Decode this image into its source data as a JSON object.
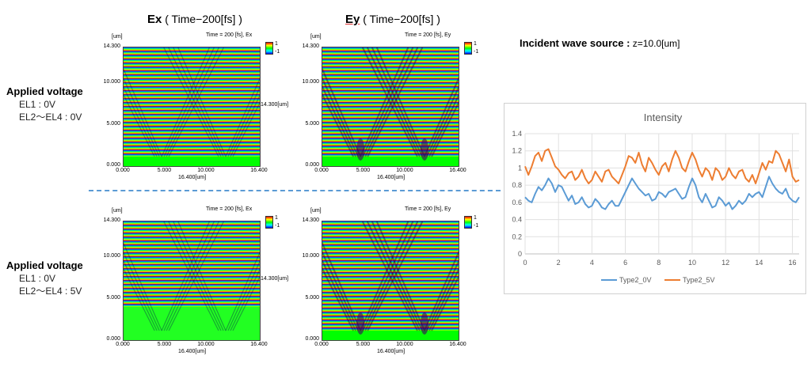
{
  "headers": {
    "ex": {
      "bold": "Ex",
      "rest": " ( Time−200[fs] )"
    },
    "ey": {
      "bold": "Ey",
      "rest": " ( Time−200[fs] )"
    }
  },
  "panels": [
    {
      "id": "ex-top",
      "title": "Time = 200 [fs], Ex",
      "unit": "[um]",
      "yticks": [
        "14.300",
        "10.000",
        "5.000",
        "0.000"
      ],
      "xticks": [
        "0.000",
        "5.000",
        "10.000",
        "16.400"
      ],
      "xlabel": "16.400[um]",
      "ysize": "",
      "cb_top": "1",
      "cb_bot": "-1",
      "variant": "ex0"
    },
    {
      "id": "ey-top",
      "title": "Time = 200 [fs], Ey",
      "unit": "[um]",
      "yticks": [
        "14.300",
        "10.000",
        "5.000",
        "0.000"
      ],
      "xticks": [
        "0.000",
        "5.000",
        "10.000",
        "16.400"
      ],
      "xlabel": "16.400[um]",
      "ysize": "14.300[um]",
      "cb_top": "1",
      "cb_bot": "-1",
      "variant": "ey0"
    },
    {
      "id": "ex-bot",
      "title": "Time = 200 [fs], Ex",
      "unit": "[um]",
      "yticks": [
        "14.300",
        "10.000",
        "5.000",
        "0.000"
      ],
      "xticks": [
        "0.000",
        "5.000",
        "10.000",
        "16.400"
      ],
      "xlabel": "16.400[um]",
      "ysize": "",
      "cb_top": "1",
      "cb_bot": "-1",
      "variant": "ex5"
    },
    {
      "id": "ey-bot",
      "title": "Time = 200 [fs], Ey",
      "unit": "[um]",
      "yticks": [
        "14.300",
        "10.000",
        "5.000",
        "0.000"
      ],
      "xticks": [
        "0.000",
        "5.000",
        "10.000",
        "16.400"
      ],
      "xlabel": "16.400[um]",
      "ysize": "14.300[um]",
      "cb_top": "1",
      "cb_bot": "-1",
      "variant": "ey5"
    }
  ],
  "voltage_top": {
    "title": "Applied voltage",
    "line1": "EL1 : 0V",
    "line2": "EL2〜EL4 : 0V"
  },
  "voltage_bottom": {
    "title": "Applied voltage",
    "line1": "EL1 : 0V",
    "line2": "EL2〜EL4 : 5V"
  },
  "source": {
    "label": "Incident wave source :",
    "value": " z=10.0[um]"
  },
  "chart_data": {
    "type": "line",
    "title": "Intensity",
    "xlabel": "",
    "ylabel": "",
    "xlim": [
      0,
      16.4
    ],
    "ylim": [
      0,
      1.4
    ],
    "xticks": [
      0,
      2,
      4,
      6,
      8,
      10,
      12,
      14,
      16
    ],
    "yticks": [
      0,
      0.2,
      0.4,
      0.6,
      0.8,
      1,
      1.2,
      1.4
    ],
    "grid": true,
    "legend": "bottom",
    "series": [
      {
        "name": "Type2_0V",
        "color": "#5b9bd5",
        "x": [
          0,
          0.2,
          0.4,
          0.6,
          0.8,
          1.0,
          1.2,
          1.4,
          1.6,
          1.8,
          2.0,
          2.2,
          2.4,
          2.6,
          2.8,
          3.0,
          3.2,
          3.4,
          3.6,
          3.8,
          4.0,
          4.2,
          4.4,
          4.6,
          4.8,
          5.0,
          5.2,
          5.4,
          5.6,
          5.8,
          6.0,
          6.2,
          6.4,
          6.6,
          6.8,
          7.0,
          7.2,
          7.4,
          7.6,
          7.8,
          8.0,
          8.2,
          8.4,
          8.6,
          8.8,
          9.0,
          9.2,
          9.4,
          9.6,
          9.8,
          10.0,
          10.2,
          10.4,
          10.6,
          10.8,
          11.0,
          11.2,
          11.4,
          11.6,
          11.8,
          12.0,
          12.2,
          12.4,
          12.6,
          12.8,
          13.0,
          13.2,
          13.4,
          13.6,
          13.8,
          14.0,
          14.2,
          14.4,
          14.6,
          14.8,
          15.0,
          15.2,
          15.4,
          15.6,
          15.8,
          16.0,
          16.2,
          16.4
        ],
        "y": [
          0.66,
          0.62,
          0.6,
          0.7,
          0.78,
          0.74,
          0.8,
          0.88,
          0.82,
          0.72,
          0.8,
          0.78,
          0.7,
          0.62,
          0.68,
          0.58,
          0.6,
          0.66,
          0.58,
          0.54,
          0.56,
          0.64,
          0.6,
          0.54,
          0.52,
          0.58,
          0.62,
          0.56,
          0.56,
          0.64,
          0.72,
          0.8,
          0.88,
          0.82,
          0.76,
          0.72,
          0.68,
          0.7,
          0.62,
          0.64,
          0.72,
          0.7,
          0.66,
          0.72,
          0.74,
          0.76,
          0.7,
          0.64,
          0.66,
          0.78,
          0.88,
          0.8,
          0.66,
          0.6,
          0.7,
          0.62,
          0.54,
          0.56,
          0.66,
          0.62,
          0.56,
          0.6,
          0.52,
          0.56,
          0.62,
          0.58,
          0.62,
          0.7,
          0.66,
          0.7,
          0.72,
          0.66,
          0.78,
          0.9,
          0.82,
          0.76,
          0.72,
          0.7,
          0.76,
          0.66,
          0.62,
          0.6,
          0.66
        ]
      },
      {
        "name": "Type2_5V",
        "color": "#ed7d31",
        "x": [
          0,
          0.2,
          0.4,
          0.6,
          0.8,
          1.0,
          1.2,
          1.4,
          1.6,
          1.8,
          2.0,
          2.2,
          2.4,
          2.6,
          2.8,
          3.0,
          3.2,
          3.4,
          3.6,
          3.8,
          4.0,
          4.2,
          4.4,
          4.6,
          4.8,
          5.0,
          5.2,
          5.4,
          5.6,
          5.8,
          6.0,
          6.2,
          6.4,
          6.6,
          6.8,
          7.0,
          7.2,
          7.4,
          7.6,
          7.8,
          8.0,
          8.2,
          8.4,
          8.6,
          8.8,
          9.0,
          9.2,
          9.4,
          9.6,
          9.8,
          10.0,
          10.2,
          10.4,
          10.6,
          10.8,
          11.0,
          11.2,
          11.4,
          11.6,
          11.8,
          12.0,
          12.2,
          12.4,
          12.6,
          12.8,
          13.0,
          13.2,
          13.4,
          13.6,
          13.8,
          14.0,
          14.2,
          14.4,
          14.6,
          14.8,
          15.0,
          15.2,
          15.4,
          15.6,
          15.8,
          16.0,
          16.2,
          16.4
        ],
        "y": [
          1.02,
          0.92,
          1.02,
          1.14,
          1.18,
          1.08,
          1.2,
          1.22,
          1.12,
          1.02,
          0.98,
          0.92,
          0.88,
          0.94,
          0.96,
          0.86,
          0.9,
          0.98,
          0.88,
          0.82,
          0.86,
          0.96,
          0.9,
          0.84,
          0.96,
          0.98,
          0.9,
          0.86,
          0.82,
          0.92,
          1.02,
          1.14,
          1.12,
          1.06,
          1.18,
          1.04,
          0.96,
          1.12,
          1.06,
          0.98,
          0.92,
          1.02,
          1.06,
          0.96,
          1.1,
          1.2,
          1.12,
          1.0,
          0.96,
          1.08,
          1.18,
          1.1,
          0.98,
          0.9,
          1.0,
          0.96,
          0.86,
          1.0,
          0.96,
          0.86,
          0.9,
          1.0,
          0.92,
          0.88,
          0.96,
          0.98,
          0.88,
          0.84,
          0.92,
          0.82,
          0.94,
          1.06,
          0.98,
          1.08,
          1.06,
          1.2,
          1.16,
          1.06,
          0.96,
          1.1,
          0.9,
          0.84,
          0.86
        ]
      }
    ]
  }
}
